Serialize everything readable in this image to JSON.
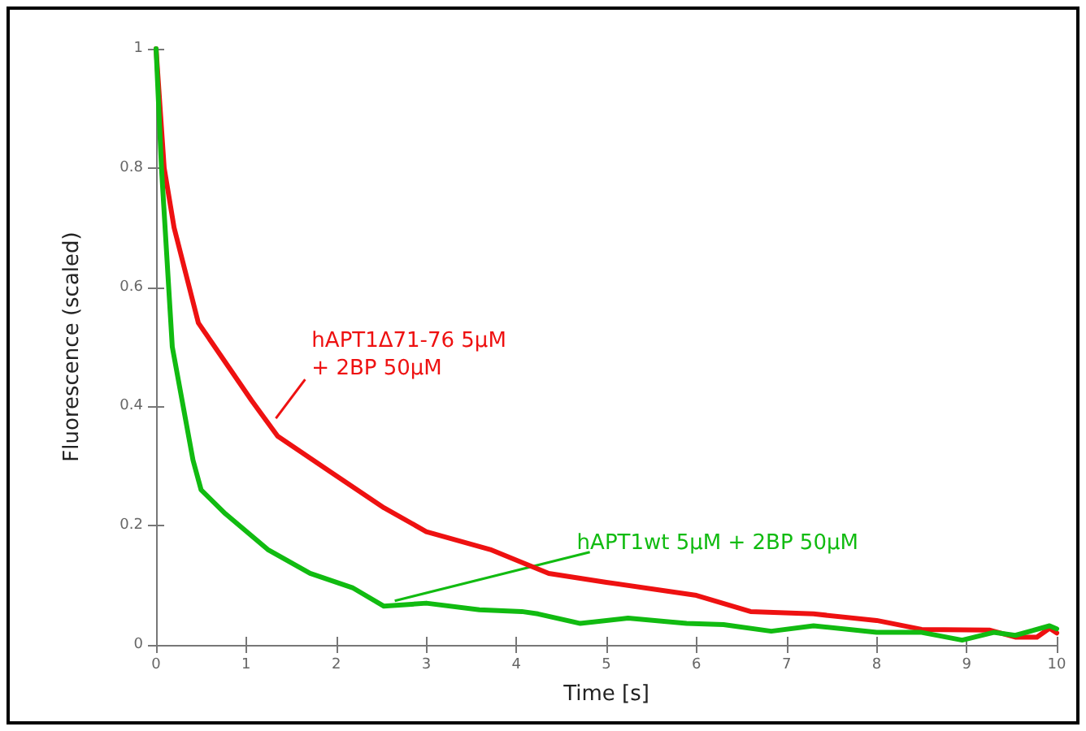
{
  "chart_data": {
    "type": "line",
    "xlabel": "Time [s]",
    "ylabel": "Fluorescence (scaled)",
    "xlim": [
      0,
      10
    ],
    "xticks": [
      0,
      1,
      2,
      3,
      4,
      5,
      6,
      7,
      8,
      9,
      10
    ],
    "ylim": [
      0,
      1
    ],
    "yticks": [
      0,
      0.2,
      0.4,
      0.6,
      0.8,
      1
    ],
    "grid": false,
    "marker": "none",
    "line_style": "solid",
    "series": [
      {
        "color": "#ee1111",
        "x": [
          0,
          0.09,
          0.2,
          0.47,
          1.06,
          1.35,
          1.94,
          2.53,
          3.0,
          3.71,
          4.36,
          5.0,
          6.0,
          6.6,
          7.3,
          8.0,
          8.5,
          9.25,
          9.54,
          9.78,
          9.92,
          10
        ],
        "values": [
          1,
          0.8,
          0.7,
          0.54,
          0.41,
          0.35,
          0.29,
          0.23,
          0.19,
          0.16,
          0.12,
          0.105,
          0.083,
          0.056,
          0.052,
          0.041,
          0.026,
          0.025,
          0.013,
          0.013,
          0.028,
          0.02
        ]
      },
      {
        "color": "#11bb11",
        "x": [
          0,
          0.06,
          0.18,
          0.41,
          0.5,
          0.77,
          1.24,
          1.71,
          2.18,
          2.53,
          3.0,
          3.59,
          4.06,
          4.24,
          4.71,
          5.24,
          5.89,
          6.3,
          6.83,
          7.3,
          8.0,
          8.5,
          8.95,
          9.3,
          9.54,
          9.92,
          10
        ],
        "values": [
          1,
          0.8,
          0.5,
          0.31,
          0.26,
          0.22,
          0.16,
          0.12,
          0.096,
          0.065,
          0.07,
          0.059,
          0.056,
          0.052,
          0.036,
          0.045,
          0.036,
          0.034,
          0.023,
          0.032,
          0.021,
          0.021,
          0.008,
          0.021,
          0.016,
          0.032,
          0.027
        ]
      }
    ],
    "annotations": [
      {
        "text": "hAPT1Δ71-76 5μM\n+ 2BP 50μM",
        "x": 1.33,
        "y": 0.38
      },
      {
        "text": "hAPT1wt 5μM + 2BP 50μM",
        "x": 2.65,
        "y": 0.074
      }
    ]
  }
}
